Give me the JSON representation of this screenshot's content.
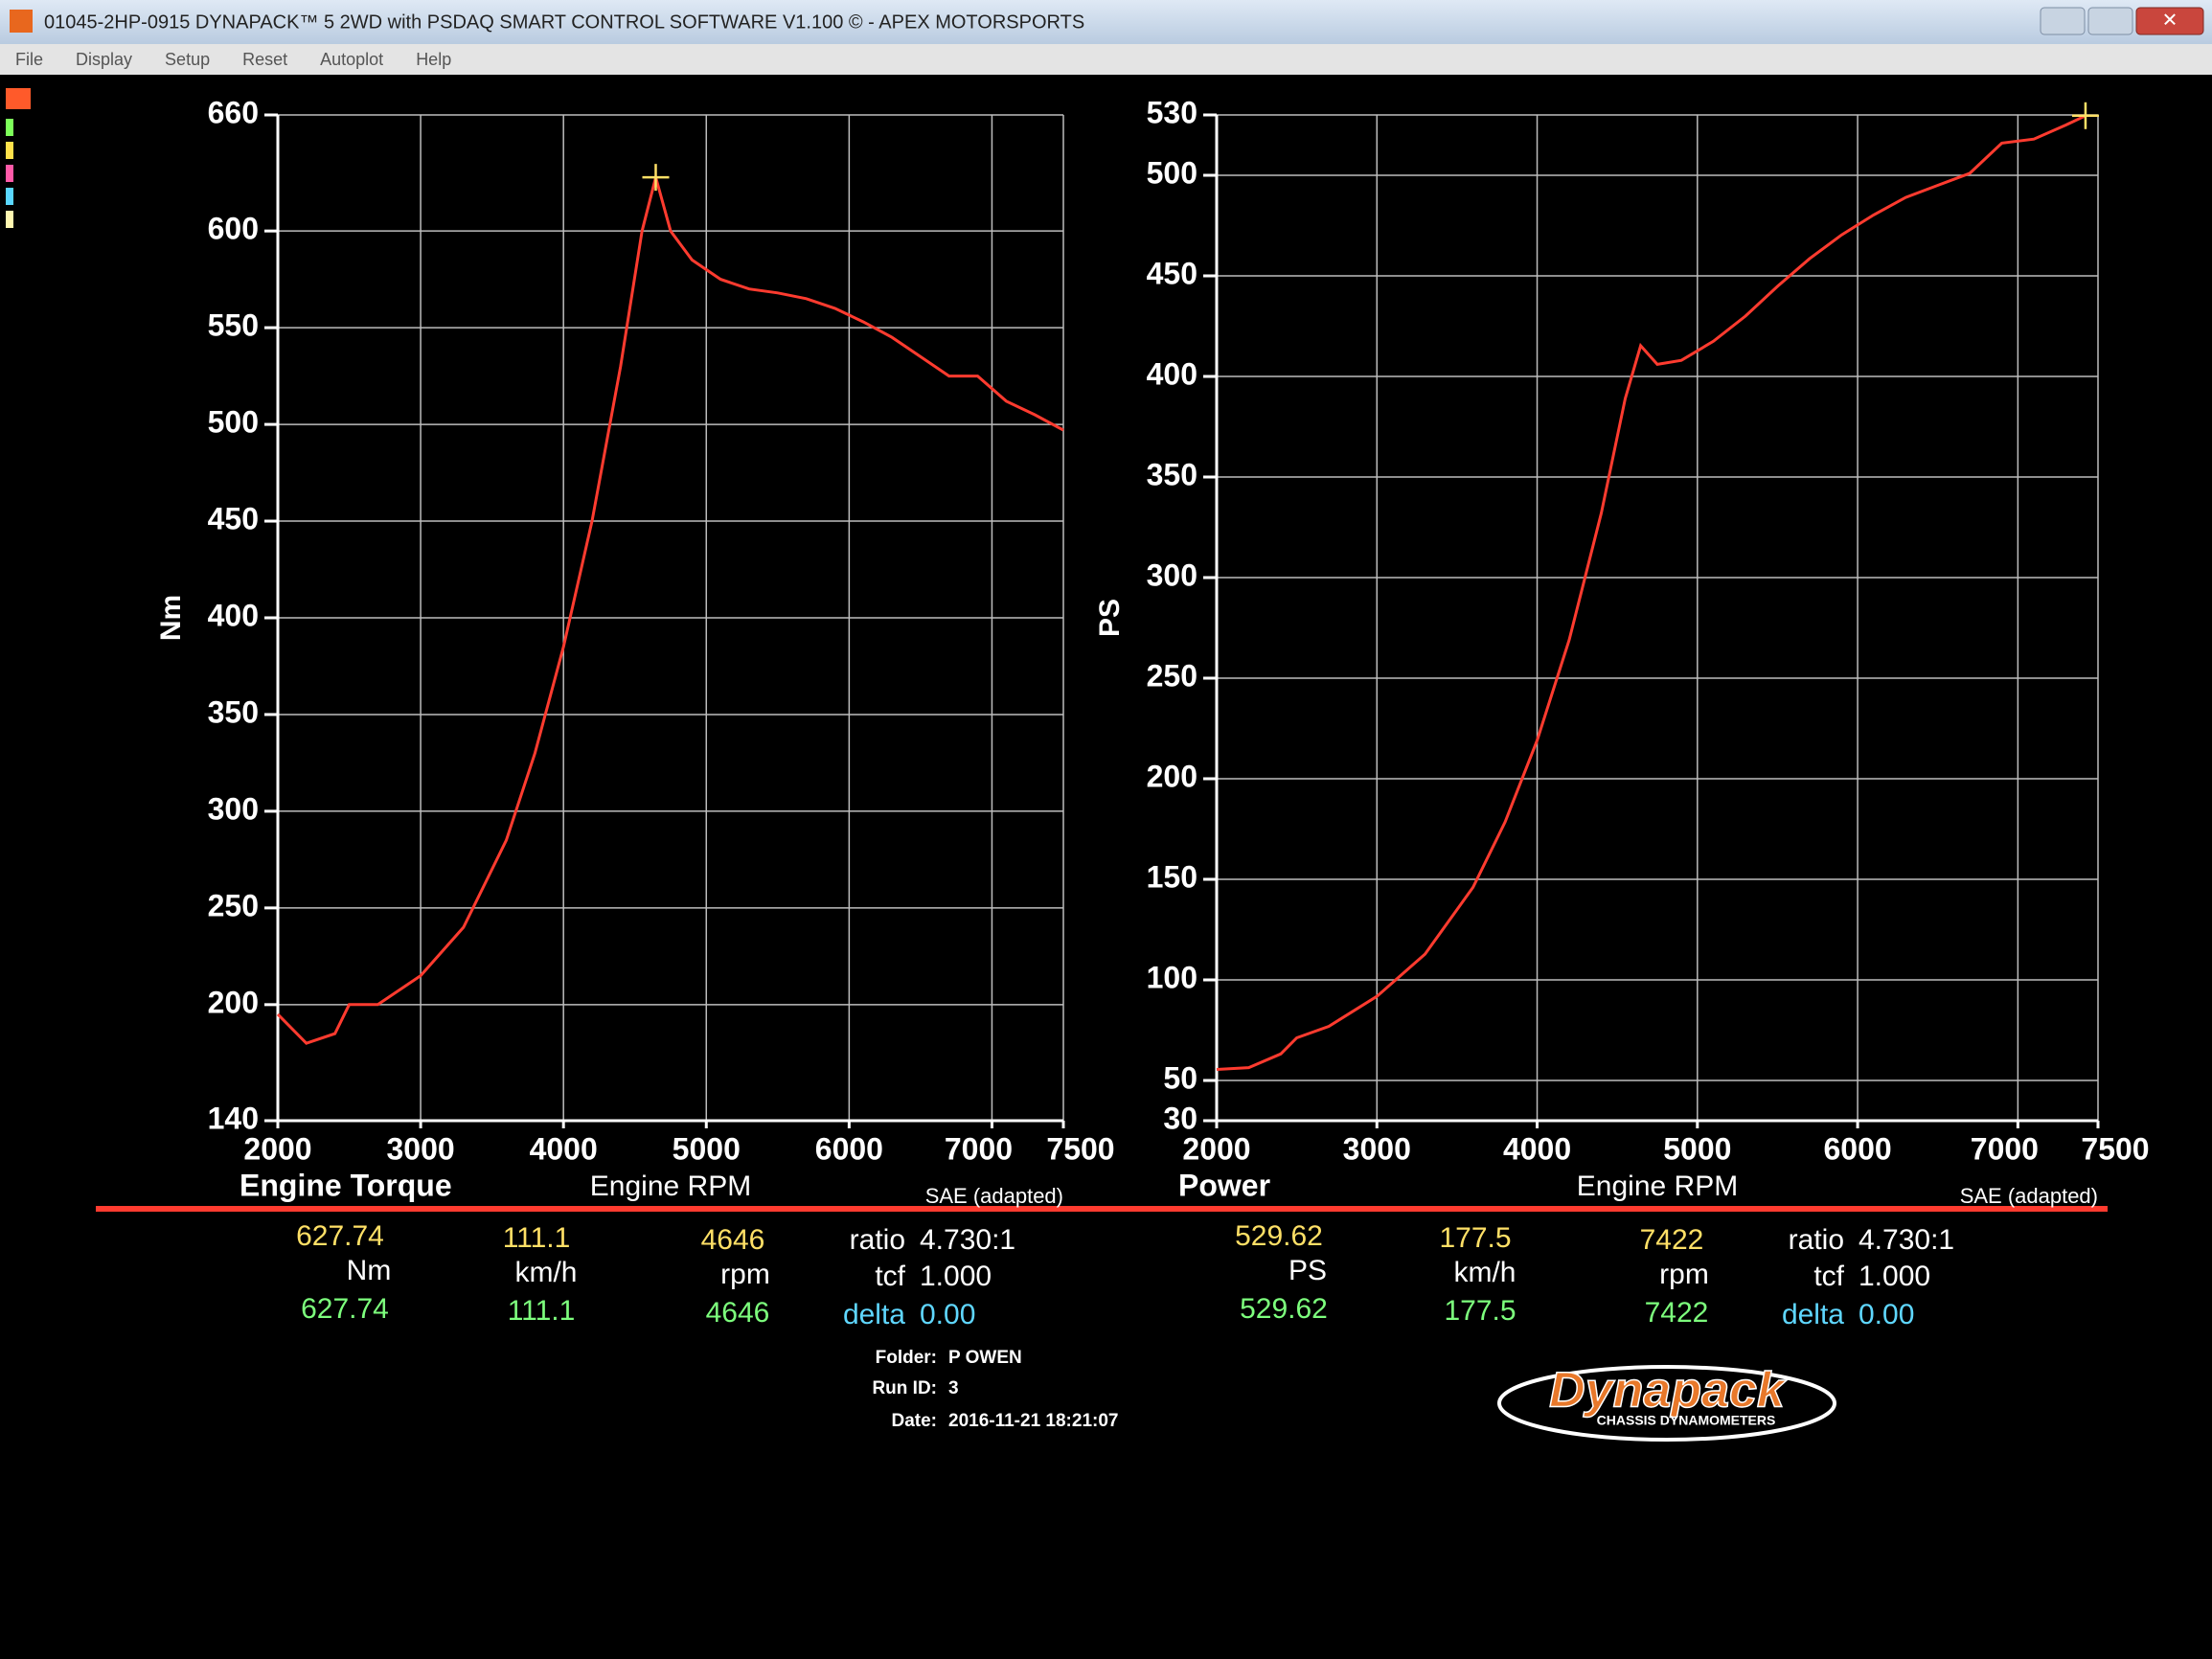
{
  "window": {
    "title": "01045-2HP-0915 DYNAPACK™ 5 2WD with PSDAQ SMART CONTROL SOFTWARE V1.100 © - APEX MOTORSPORTS",
    "menu": [
      "File",
      "Display",
      "Setup",
      "Reset",
      "Autoplot",
      "Help"
    ]
  },
  "chart_data": [
    {
      "type": "line",
      "title": "Engine Torque",
      "x_label": "Engine RPM",
      "y_label": "Nm",
      "note": "SAE (adapted)",
      "x": [
        2000,
        2200,
        2400,
        2500,
        2700,
        3000,
        3300,
        3600,
        3800,
        4000,
        4200,
        4400,
        4550,
        4646,
        4750,
        4900,
        5100,
        5300,
        5500,
        5700,
        5900,
        6100,
        6300,
        6500,
        6700,
        6900,
        7100,
        7300,
        7500
      ],
      "values": [
        195,
        180,
        185,
        200,
        200,
        215,
        240,
        285,
        330,
        385,
        450,
        530,
        600,
        627.74,
        600,
        585,
        575,
        570,
        568,
        565,
        560,
        553,
        545,
        535,
        525,
        525,
        512,
        505,
        497
      ],
      "color": "#ff3b2f",
      "xlim": [
        2000,
        7500
      ],
      "xticks": [
        2000,
        3000,
        4000,
        5000,
        6000,
        7000,
        7500
      ],
      "ylim": [
        140,
        660
      ],
      "yticks": [
        140,
        200,
        250,
        300,
        350,
        400,
        450,
        500,
        550,
        600,
        660
      ],
      "grid": true
    },
    {
      "type": "line",
      "title": "Power",
      "x_label": "Engine RPM",
      "y_label": "PS",
      "note": "SAE (adapted)",
      "x": [
        2000,
        2200,
        2400,
        2500,
        2700,
        3000,
        3300,
        3600,
        3800,
        4000,
        4200,
        4400,
        4550,
        4646,
        4750,
        4900,
        5100,
        5300,
        5500,
        5700,
        5900,
        6100,
        6300,
        6500,
        6700,
        6900,
        7100,
        7300,
        7422
      ],
      "values": [
        55.5,
        56.4,
        63.2,
        71.2,
        76.9,
        91.8,
        112.8,
        146,
        178.5,
        219,
        269,
        332,
        389,
        415.3,
        406,
        408,
        417.5,
        430,
        444.8,
        458.5,
        470.4,
        480.3,
        489,
        495,
        501,
        516,
        518,
        525,
        529.62
      ],
      "color": "#ff3b2f",
      "xlim": [
        2000,
        7500
      ],
      "xticks": [
        2000,
        3000,
        4000,
        5000,
        6000,
        7000,
        7500
      ],
      "ylim": [
        30,
        530
      ],
      "yticks": [
        30,
        50,
        100,
        150,
        200,
        250,
        300,
        350,
        400,
        450,
        500,
        530
      ],
      "grid": true
    }
  ],
  "readouts": [
    {
      "value": 627.74,
      "unit": "Nm",
      "value_current": 627.74,
      "speed": 111.1,
      "speed_unit": "km/h",
      "speed_current": 111.1,
      "rpm": 4646,
      "rpm_unit": "rpm",
      "rpm_current": 4646,
      "ratio_label": "ratio",
      "ratio": "4.730:1",
      "tcf_label": "tcf",
      "tcf": "1.000",
      "delta_label": "delta",
      "delta": "0.00"
    },
    {
      "value": 529.62,
      "unit": "PS",
      "value_current": 529.62,
      "speed": 177.5,
      "speed_unit": "km/h",
      "speed_current": 177.5,
      "rpm": 7422,
      "rpm_unit": "rpm",
      "rpm_current": 7422,
      "ratio_label": "ratio",
      "ratio": "4.730:1",
      "tcf_label": "tcf",
      "tcf": "1.000",
      "delta_label": "delta",
      "delta": "0.00"
    }
  ],
  "footer": {
    "folder_label": "Folder:",
    "folder": "P OWEN",
    "run_label": "Run ID:",
    "run": 3,
    "date_label": "Date:",
    "date": "2016-11-21 18:21:07"
  },
  "logo": {
    "name": "Dynapack",
    "tagline": "CHASSIS DYNAMOMETERS"
  }
}
